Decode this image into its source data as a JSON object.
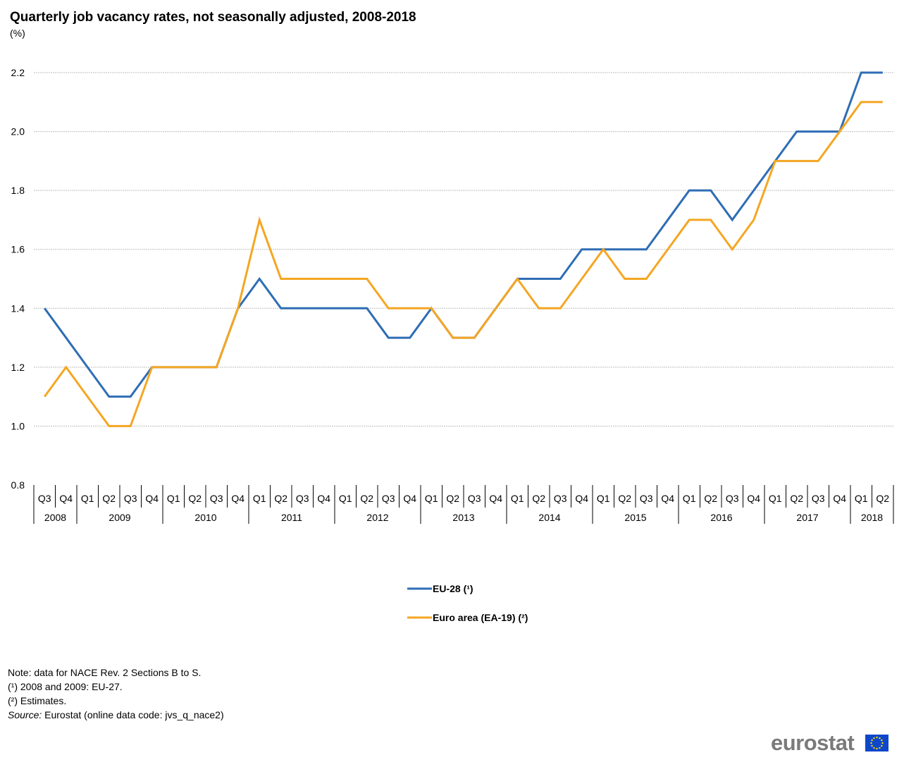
{
  "title": "Quarterly job vacancy rates, not seasonally adjusted, 2008-2018",
  "unit": "(%)",
  "notes": {
    "n1": "Note: data for NACE Rev. 2 Sections B to S.",
    "n2": "(¹) 2008 and 2009: EU-27.",
    "n3": "(²) Estimates.",
    "source_label": "Source:",
    "source_text": " Eurostat (online data code: jvs_q_nace2)"
  },
  "logo": "eurostat",
  "chart_data": {
    "type": "line",
    "title": "Quarterly job vacancy rates, not seasonally adjusted, 2008-2018",
    "ylabel": "(%)",
    "ylim": [
      0.8,
      2.2
    ],
    "yticks": [
      "0.8",
      "1.0",
      "1.2",
      "1.4",
      "1.6",
      "1.8",
      "2.0",
      "2.2"
    ],
    "grid": true,
    "legend_position": "bottom-center",
    "years": [
      {
        "label": "2008",
        "quarters": [
          "Q3",
          "Q4"
        ]
      },
      {
        "label": "2009",
        "quarters": [
          "Q1",
          "Q2",
          "Q3",
          "Q4"
        ]
      },
      {
        "label": "2010",
        "quarters": [
          "Q1",
          "Q2",
          "Q3",
          "Q4"
        ]
      },
      {
        "label": "2011",
        "quarters": [
          "Q1",
          "Q2",
          "Q3",
          "Q4"
        ]
      },
      {
        "label": "2012",
        "quarters": [
          "Q1",
          "Q2",
          "Q3",
          "Q4"
        ]
      },
      {
        "label": "2013",
        "quarters": [
          "Q1",
          "Q2",
          "Q3",
          "Q4"
        ]
      },
      {
        "label": "2014",
        "quarters": [
          "Q1",
          "Q2",
          "Q3",
          "Q4"
        ]
      },
      {
        "label": "2015",
        "quarters": [
          "Q1",
          "Q2",
          "Q3",
          "Q4"
        ]
      },
      {
        "label": "2016",
        "quarters": [
          "Q1",
          "Q2",
          "Q3",
          "Q4"
        ]
      },
      {
        "label": "2017",
        "quarters": [
          "Q1",
          "Q2",
          "Q3",
          "Q4"
        ]
      },
      {
        "label": "2018",
        "quarters": [
          "Q1",
          "Q2"
        ]
      }
    ],
    "series": [
      {
        "name": "EU-28 (¹)",
        "color": "#2e6db4",
        "values": [
          1.4,
          1.3,
          1.2,
          1.1,
          1.1,
          1.2,
          1.2,
          1.2,
          1.2,
          1.4,
          1.5,
          1.4,
          1.4,
          1.4,
          1.4,
          1.4,
          1.3,
          1.3,
          1.4,
          1.3,
          1.3,
          1.4,
          1.5,
          1.5,
          1.5,
          1.6,
          1.6,
          1.6,
          1.6,
          1.7,
          1.8,
          1.8,
          1.7,
          1.8,
          1.9,
          2.0,
          2.0,
          2.0,
          2.2,
          2.2
        ]
      },
      {
        "name": "Euro area (EA-19) (²)",
        "color": "#f5a623",
        "values": [
          1.1,
          1.2,
          1.1,
          1.0,
          1.0,
          1.2,
          1.2,
          1.2,
          1.2,
          1.4,
          1.7,
          1.5,
          1.5,
          1.5,
          1.5,
          1.5,
          1.4,
          1.4,
          1.4,
          1.3,
          1.3,
          1.4,
          1.5,
          1.4,
          1.4,
          1.5,
          1.6,
          1.5,
          1.5,
          1.6,
          1.7,
          1.7,
          1.6,
          1.7,
          1.9,
          1.9,
          1.9,
          2.0,
          2.1,
          2.1
        ]
      }
    ]
  }
}
